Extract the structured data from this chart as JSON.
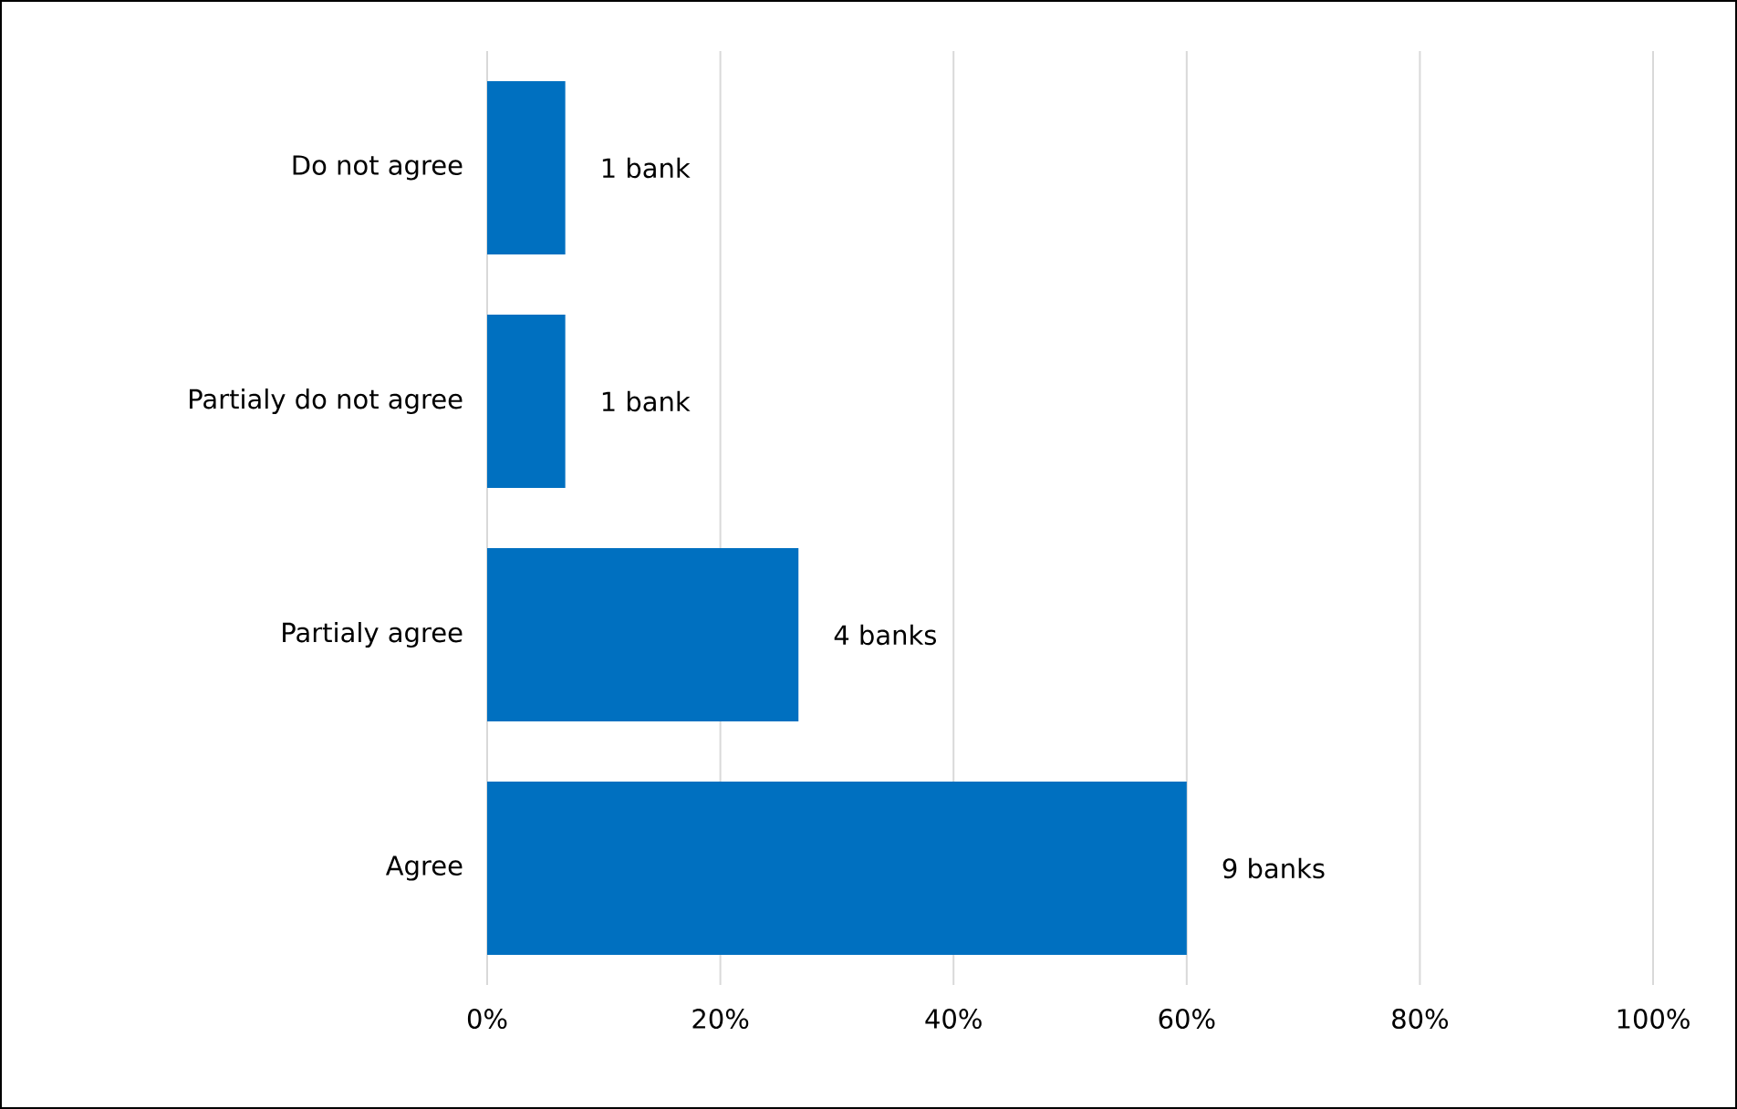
{
  "chart_data": {
    "type": "bar",
    "orientation": "horizontal",
    "categories": [
      "Do not agree",
      "Partialy do not agree",
      "Partialy agree",
      "Agree"
    ],
    "values": [
      6.7,
      6.7,
      26.7,
      60
    ],
    "annotations": [
      {
        "text": "1 bank",
        "x": 6.7,
        "y": "Do not agree"
      },
      {
        "text": "1 bank",
        "x": 6.7,
        "y": "Partialy do not agree"
      },
      {
        "text": "4 banks",
        "x": 26.7,
        "y": "Partialy agree"
      },
      {
        "text": "9 banks",
        "x": 60,
        "y": "Agree"
      }
    ],
    "color": "#0070c0",
    "xlim": [
      0,
      100
    ],
    "xticks": [
      {
        "value": 0,
        "label": "0%"
      },
      {
        "value": 20,
        "label": "20%"
      },
      {
        "value": 40,
        "label": "40%"
      },
      {
        "value": 60,
        "label": "60%"
      },
      {
        "value": 80,
        "label": "80%"
      },
      {
        "value": 100,
        "label": "100%"
      }
    ],
    "grid": "x"
  }
}
